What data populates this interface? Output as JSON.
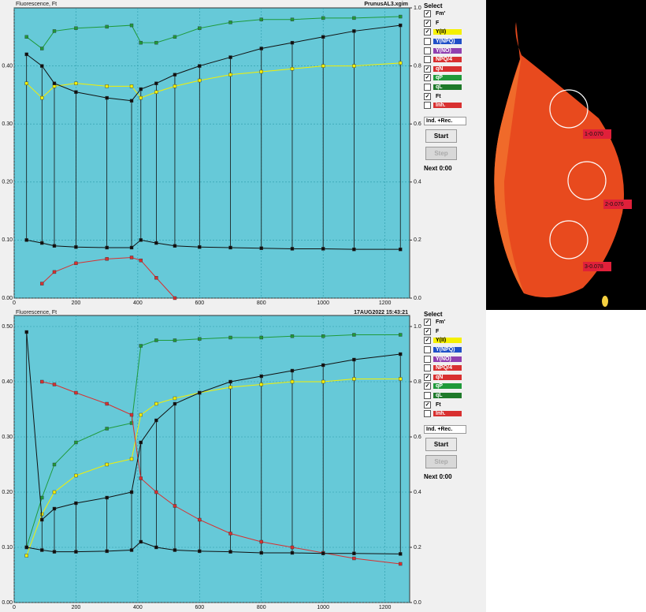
{
  "panels": [
    {
      "title": "Fluorescence, Ft",
      "file": "PrunusAL3.xgim",
      "xlim": [
        0,
        1280
      ],
      "xticks": [
        0,
        200,
        400,
        600,
        800,
        1000,
        1200
      ],
      "ylim": [
        0,
        0.5
      ],
      "yticks": [
        {
          "value": 0,
          "label": "0.00"
        },
        {
          "value": 0.1,
          "label": "0.10"
        },
        {
          "value": 0.2,
          "label": "0.20"
        },
        {
          "value": 0.3,
          "label": "0.30"
        },
        {
          "value": 0.4,
          "label": "0.40"
        }
      ],
      "y2lim": [
        0,
        1
      ],
      "y2ticks": [
        {
          "value": 0,
          "label": "0.0"
        },
        0.2,
        0.4,
        0.6,
        0.8,
        {
          "value": 1,
          "label": "1.0"
        }
      ],
      "x": [
        40,
        90,
        130,
        200,
        300,
        380,
        410,
        460,
        520,
        600,
        700,
        800,
        900,
        1000,
        1100,
        1250
      ],
      "series": [
        {
          "name": "qP",
          "color": "#1f9a3a",
          "axis": "y2",
          "values": [
            0.9,
            0.86,
            0.92,
            0.93,
            0.935,
            0.94,
            0.88,
            0.88,
            0.9,
            0.93,
            0.95,
            0.96,
            0.96,
            0.965,
            0.965,
            0.97
          ]
        },
        {
          "name": "Y(II)",
          "color": "#f5f000",
          "axis": "y2",
          "values": [
            0.74,
            0.69,
            0.73,
            0.74,
            0.73,
            0.73,
            0.69,
            0.71,
            0.73,
            0.75,
            0.77,
            0.78,
            0.79,
            0.8,
            0.8,
            0.81
          ]
        },
        {
          "name": "qN",
          "color": "#d83030",
          "axis": "y2",
          "values": [
            null,
            0.05,
            0.09,
            0.12,
            0.135,
            0.14,
            0.13,
            0.07,
            0.0,
            null,
            null,
            null,
            null,
            null,
            null,
            null
          ]
        },
        {
          "name": "Fm'",
          "color": "#101010",
          "values": [
            0.42,
            0.4,
            0.37,
            0.355,
            0.345,
            0.34,
            0.36,
            0.37,
            0.385,
            0.4,
            0.415,
            0.43,
            0.44,
            0.45,
            0.46,
            0.47
          ]
        },
        {
          "name": "Ft",
          "color": "#101010",
          "values": [
            0.1,
            0.095,
            0.09,
            0.088,
            0.087,
            0.087,
            0.1,
            0.095,
            0.09,
            0.088,
            0.087,
            0.086,
            0.085,
            0.085,
            0.084,
            0.084
          ]
        }
      ],
      "sidebar": {
        "heading": "Select",
        "items": [
          {
            "label": "Fm'",
            "checked": true
          },
          {
            "label": "F",
            "checked": true
          },
          {
            "label": "Y(II)",
            "checked": true,
            "color": "#f5f000"
          },
          {
            "label": "Y(NPQ)",
            "checked": false,
            "color": "#2050c8"
          },
          {
            "label": "Y(NO)",
            "checked": false,
            "color": "#9040b0"
          },
          {
            "label": "NPQ/4",
            "checked": false,
            "color": "#d83030"
          },
          {
            "label": "qN",
            "checked": true,
            "color": "#d83030"
          },
          {
            "label": "qP",
            "checked": true,
            "color": "#1f9a3a"
          },
          {
            "label": "qL",
            "checked": false,
            "color": "#1f7a2a"
          },
          {
            "label": "Ft",
            "checked": true
          },
          {
            "label": "Inh.",
            "checked": false,
            "color": "#d83030"
          }
        ],
        "mode": "Ind. +Rec.",
        "start": "Start",
        "step": "Step",
        "next": "Next  0:00"
      }
    },
    {
      "title": "Fluorescence, Ft",
      "file": "17AUG2022    15:43:21",
      "xlim": [
        0,
        1280
      ],
      "xticks": [
        0,
        200,
        400,
        600,
        800,
        1000,
        1200
      ],
      "ylim": [
        0,
        0.52
      ],
      "yticks": [
        {
          "value": 0,
          "label": "0.00"
        },
        {
          "value": 0.1,
          "label": "0.10"
        },
        {
          "value": 0.2,
          "label": "0.20"
        },
        {
          "value": 0.3,
          "label": "0.30"
        },
        {
          "value": 0.4,
          "label": "0.40"
        },
        {
          "value": 0.5,
          "label": "0.50"
        }
      ],
      "y2lim": [
        0,
        1.04
      ],
      "y2ticks": [
        {
          "value": 0,
          "label": "0.0"
        },
        0.2,
        0.4,
        0.6,
        0.8,
        {
          "value": 1,
          "label": "1.0"
        }
      ],
      "x": [
        40,
        90,
        130,
        200,
        300,
        380,
        410,
        460,
        520,
        600,
        700,
        800,
        900,
        1000,
        1100,
        1250
      ],
      "series": [
        {
          "name": "qP",
          "color": "#1f9a3a",
          "axis": "y2",
          "values": [
            0.2,
            0.38,
            0.5,
            0.58,
            0.63,
            0.65,
            0.93,
            0.95,
            0.95,
            0.955,
            0.96,
            0.96,
            0.965,
            0.965,
            0.97,
            0.97
          ]
        },
        {
          "name": "Y(II)",
          "color": "#f5f000",
          "axis": "y2",
          "values": [
            0.17,
            0.32,
            0.4,
            0.46,
            0.5,
            0.52,
            0.68,
            0.72,
            0.74,
            0.76,
            0.78,
            0.79,
            0.8,
            0.8,
            0.81,
            0.81
          ]
        },
        {
          "name": "qN",
          "color": "#d83030",
          "axis": "y2",
          "values": [
            null,
            0.8,
            0.79,
            0.76,
            0.72,
            0.68,
            0.45,
            0.4,
            0.35,
            0.3,
            0.25,
            0.22,
            0.2,
            0.18,
            0.16,
            0.14
          ]
        },
        {
          "name": "Fm'",
          "color": "#101010",
          "values": [
            0.49,
            0.15,
            0.17,
            0.18,
            0.19,
            0.2,
            0.29,
            0.33,
            0.36,
            0.38,
            0.4,
            0.41,
            0.42,
            0.43,
            0.44,
            0.45
          ]
        },
        {
          "name": "Ft",
          "color": "#101010",
          "values": [
            0.1,
            0.095,
            0.092,
            0.092,
            0.093,
            0.095,
            0.11,
            0.1,
            0.095,
            0.093,
            0.092,
            0.09,
            0.09,
            0.089,
            0.089,
            0.088
          ]
        }
      ],
      "sidebar": {
        "heading": "Select",
        "items": [
          {
            "label": "Fm'",
            "checked": true
          },
          {
            "label": "F",
            "checked": true
          },
          {
            "label": "Y(II)",
            "checked": true,
            "color": "#f5f000"
          },
          {
            "label": "Y(NPQ)",
            "checked": false,
            "color": "#2050c8"
          },
          {
            "label": "Y(NO)",
            "checked": false,
            "color": "#9040b0"
          },
          {
            "label": "NPQ/4",
            "checked": false,
            "color": "#d83030"
          },
          {
            "label": "qN",
            "checked": true,
            "color": "#d83030"
          },
          {
            "label": "qP",
            "checked": true,
            "color": "#1f9a3a"
          },
          {
            "label": "qL",
            "checked": false,
            "color": "#1f7a2a"
          },
          {
            "label": "Ft",
            "checked": true
          },
          {
            "label": "Inh.",
            "checked": false,
            "color": "#d83030"
          }
        ],
        "mode": "Ind. +Rec.",
        "start": "Start",
        "step": "Step",
        "next": "Next  0:00"
      }
    }
  ],
  "leaf": {
    "labels": [
      "1-0.070",
      "2-0.076",
      "3-0.078"
    ]
  }
}
